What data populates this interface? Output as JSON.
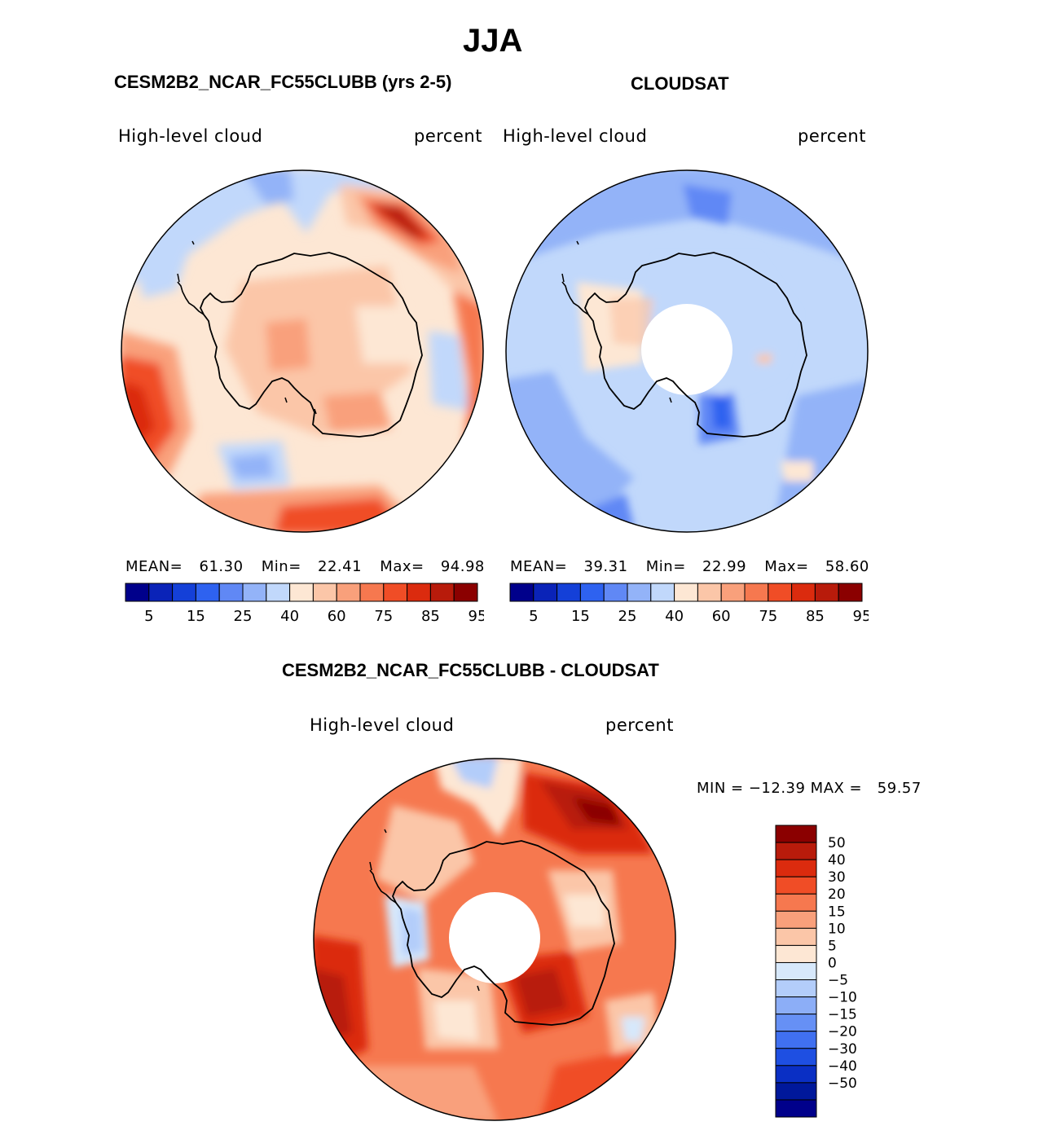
{
  "figure": {
    "title": "JJA"
  },
  "panels": [
    {
      "id": "model",
      "header": "CESM2B2_NCAR_FC55CLUBB (yrs 2-5)",
      "variable": "High-level cloud",
      "units": "percent",
      "stats": {
        "mean_label": "MEAN=",
        "mean": "61.30",
        "min_label": "Min=",
        "min": "22.41",
        "max_label": "Max=",
        "max": "94.98"
      }
    },
    {
      "id": "obs",
      "header": "CLOUDSAT",
      "variable": "High-level cloud",
      "units": "percent",
      "stats": {
        "mean_label": "MEAN=",
        "mean": "39.31",
        "min_label": "Min=",
        "min": "22.99",
        "max_label": "Max=",
        "max": "58.60"
      }
    },
    {
      "id": "diff",
      "header": "CESM2B2_NCAR_FC55CLUBB - CLOUDSAT",
      "variable": "High-level cloud",
      "units": "percent",
      "minmax_text": "MIN = −12.39 MAX =   59.57"
    }
  ],
  "colorbar_abs": {
    "colors": [
      "#00008b",
      "#0a23b8",
      "#1440d8",
      "#2e62f0",
      "#6088f5",
      "#93b3f8",
      "#c1d8fb",
      "#fde7d4",
      "#fbc6a8",
      "#f9a07b",
      "#f6784f",
      "#f04d26",
      "#db2b0e",
      "#b81b0b",
      "#8b0000"
    ],
    "tick_labels": [
      "5",
      "15",
      "25",
      "40",
      "60",
      "75",
      "85",
      "95"
    ]
  },
  "colorbar_diff": {
    "colors": [
      "#8b0000",
      "#b81b0b",
      "#db2b0e",
      "#f04d26",
      "#f6784f",
      "#f9a07b",
      "#fbc6a8",
      "#fde7d4",
      "#d7e8fb",
      "#b3cdfa",
      "#8caef7",
      "#6690f5",
      "#4070f0",
      "#1e4fe2",
      "#0a2fc4",
      "#00189b",
      "#00008b"
    ],
    "tick_labels": [
      "50",
      "40",
      "30",
      "20",
      "15",
      "10",
      "5",
      "0",
      "−5",
      "−10",
      "−15",
      "−20",
      "−30",
      "−40",
      "−50"
    ]
  }
}
